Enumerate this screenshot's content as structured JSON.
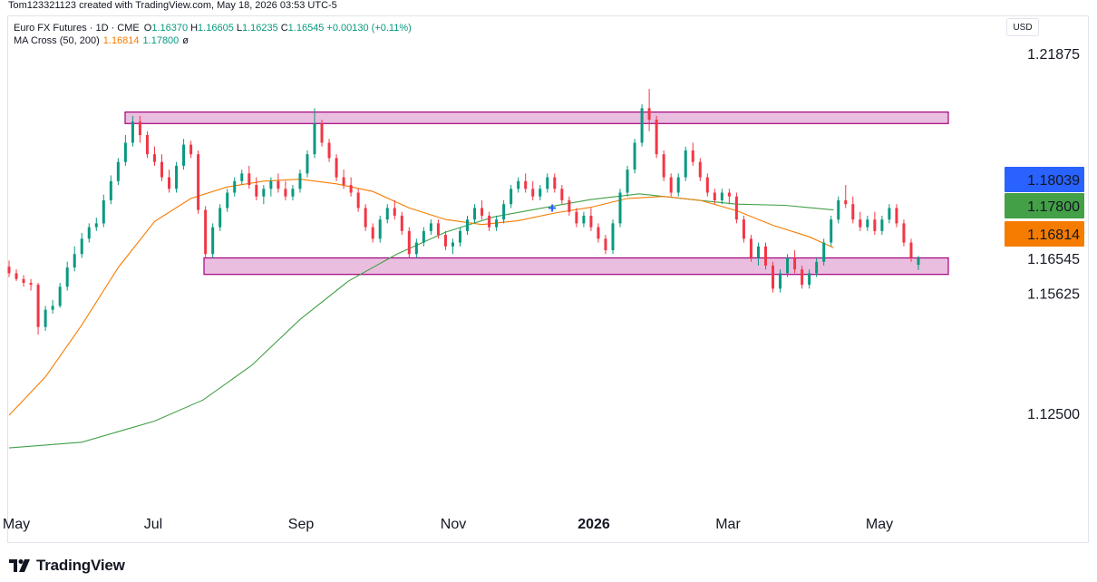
{
  "credit": "Tom123321123 created with TradingView.com, May 18, 2026 03:53 UTC-5",
  "legend": {
    "symbol": "Euro FX Futures · 1D · CME",
    "open_label": "O",
    "open": "1.16370",
    "high_label": "H",
    "high": "1.16605",
    "low_label": "L",
    "low": "1.16235",
    "close_label": "C",
    "close": "1.16545",
    "change": "+0.00130 (+0.11%)",
    "ma_title": "MA Cross (50, 200)",
    "ma50": "1.16814",
    "ma200": "1.17800",
    "ma_symbol": "ø"
  },
  "currency": "USD",
  "brand": "TradingView",
  "colors": {
    "up": "#089981",
    "down": "#f23645",
    "ma50": "#f57c00",
    "ma200": "#43a047",
    "zone_fill": "#e6b3d9",
    "zone_stroke": "#a3007d",
    "blue": "#2962ff"
  },
  "chart_data": {
    "type": "candlestick",
    "y_ticks": [
      "1.21875",
      "1.15625",
      "1.12500"
    ],
    "x_ticks": [
      {
        "label": "May"
      },
      {
        "label": "Jul"
      },
      {
        "label": "Sep"
      },
      {
        "label": "Nov"
      },
      {
        "label": "2026"
      },
      {
        "label": "Mar"
      },
      {
        "label": "May"
      }
    ],
    "price_badges": [
      {
        "label": "1.18039",
        "value": 1.18039,
        "color": "#2962ff"
      },
      {
        "label": "1.17800",
        "value": 1.178,
        "color": "#43a047"
      },
      {
        "label": "1.16814",
        "value": 1.16814,
        "color": "#f57c00"
      },
      {
        "label": "1.16545",
        "value": 1.16545,
        "color": ""
      }
    ],
    "zones": [
      {
        "name": "resistance",
        "top": 1.2035,
        "bottom": 1.2005
      },
      {
        "name": "support",
        "top": 1.1655,
        "bottom": 1.1612
      }
    ],
    "ma50": [
      [
        0,
        1.1245
      ],
      [
        15,
        1.1345
      ],
      [
        30,
        1.148
      ],
      [
        45,
        1.163
      ],
      [
        60,
        1.175
      ],
      [
        75,
        1.181
      ],
      [
        90,
        1.184
      ],
      [
        105,
        1.1855
      ],
      [
        120,
        1.186
      ],
      [
        135,
        1.1848
      ],
      [
        150,
        1.1828
      ],
      [
        165,
        1.1785
      ],
      [
        180,
        1.1755
      ],
      [
        195,
        1.1742
      ],
      [
        210,
        1.1752
      ],
      [
        225,
        1.1772
      ],
      [
        240,
        1.1787
      ],
      [
        255,
        1.181
      ],
      [
        270,
        1.1815
      ],
      [
        285,
        1.1805
      ],
      [
        300,
        1.1778
      ],
      [
        315,
        1.174
      ],
      [
        330,
        1.171
      ],
      [
        340,
        1.16814
      ]
    ],
    "ma200": [
      [
        0,
        1.116
      ],
      [
        30,
        1.1175
      ],
      [
        60,
        1.123
      ],
      [
        80,
        1.1285
      ],
      [
        100,
        1.1375
      ],
      [
        120,
        1.1495
      ],
      [
        140,
        1.1595
      ],
      [
        160,
        1.1665
      ],
      [
        180,
        1.1722
      ],
      [
        200,
        1.1762
      ],
      [
        220,
        1.1785
      ],
      [
        240,
        1.1807
      ],
      [
        260,
        1.1822
      ],
      [
        280,
        1.1808
      ],
      [
        300,
        1.1795
      ],
      [
        320,
        1.1792
      ],
      [
        340,
        1.178
      ]
    ],
    "candles": [
      [
        0,
        1.1632,
        1.1648,
        1.1605,
        1.1615
      ],
      [
        3,
        1.1615,
        1.1625,
        1.1595,
        1.16
      ],
      [
        6,
        1.16,
        1.161,
        1.158,
        1.159
      ],
      [
        9,
        1.159,
        1.16,
        1.157,
        1.1585
      ],
      [
        12,
        1.1585,
        1.159,
        1.1455,
        1.1475
      ],
      [
        15,
        1.1475,
        1.153,
        1.1465,
        1.152
      ],
      [
        18,
        1.152,
        1.1545,
        1.151,
        1.153
      ],
      [
        21,
        1.153,
        1.159,
        1.1525,
        1.158
      ],
      [
        24,
        1.158,
        1.1645,
        1.157,
        1.163
      ],
      [
        27,
        1.163,
        1.1685,
        1.162,
        1.1665
      ],
      [
        30,
        1.1665,
        1.172,
        1.1655,
        1.1705
      ],
      [
        33,
        1.1705,
        1.1745,
        1.1695,
        1.1735
      ],
      [
        36,
        1.1735,
        1.176,
        1.1725,
        1.1745
      ],
      [
        39,
        1.1745,
        1.182,
        1.1735,
        1.1805
      ],
      [
        42,
        1.1805,
        1.187,
        1.1795,
        1.1855
      ],
      [
        45,
        1.1855,
        1.1915,
        1.1845,
        1.1905
      ],
      [
        48,
        1.1905,
        1.1975,
        1.1895,
        1.1955
      ],
      [
        51,
        1.1955,
        1.2025,
        1.1945,
        1.201
      ],
      [
        54,
        1.201,
        1.2025,
        1.1955,
        1.1975
      ],
      [
        57,
        1.1975,
        1.1985,
        1.1915,
        1.1925
      ],
      [
        60,
        1.1925,
        1.1945,
        1.1895,
        1.1905
      ],
      [
        63,
        1.1905,
        1.1925,
        1.1855,
        1.1865
      ],
      [
        66,
        1.1865,
        1.1885,
        1.1825,
        1.1835
      ],
      [
        69,
        1.1835,
        1.1905,
        1.1825,
        1.1895
      ],
      [
        72,
        1.1895,
        1.1965,
        1.1885,
        1.195
      ],
      [
        75,
        1.195,
        1.196,
        1.1915,
        1.1925
      ],
      [
        78,
        1.1925,
        1.1935,
        1.177,
        1.178
      ],
      [
        81,
        1.178,
        1.179,
        1.1655,
        1.1665
      ],
      [
        84,
        1.1665,
        1.1745,
        1.1655,
        1.1735
      ],
      [
        87,
        1.1735,
        1.1795,
        1.1725,
        1.1785
      ],
      [
        90,
        1.1785,
        1.1835,
        1.1775,
        1.1825
      ],
      [
        93,
        1.1825,
        1.1865,
        1.1815,
        1.1855
      ],
      [
        96,
        1.1855,
        1.1885,
        1.1845,
        1.1875
      ],
      [
        99,
        1.1875,
        1.1895,
        1.1835,
        1.1845
      ],
      [
        102,
        1.1845,
        1.1865,
        1.1805,
        1.1815
      ],
      [
        105,
        1.1815,
        1.1845,
        1.1795,
        1.1835
      ],
      [
        108,
        1.1835,
        1.1865,
        1.1815,
        1.1855
      ],
      [
        111,
        1.1855,
        1.1875,
        1.1825,
        1.1835
      ],
      [
        114,
        1.1835,
        1.1855,
        1.1805,
        1.1815
      ],
      [
        117,
        1.1815,
        1.1845,
        1.1805,
        1.1835
      ],
      [
        120,
        1.1835,
        1.1885,
        1.1825,
        1.1875
      ],
      [
        123,
        1.1875,
        1.1935,
        1.1865,
        1.1925
      ],
      [
        126,
        1.1925,
        1.2045,
        1.1915,
        1.2005
      ],
      [
        129,
        1.2005,
        1.2015,
        1.1945,
        1.1955
      ],
      [
        132,
        1.1955,
        1.1965,
        1.1905,
        1.1915
      ],
      [
        135,
        1.1915,
        1.1925,
        1.1855,
        1.1865
      ],
      [
        138,
        1.1865,
        1.1885,
        1.1835,
        1.1845
      ],
      [
        141,
        1.1845,
        1.1865,
        1.1815,
        1.1825
      ],
      [
        144,
        1.1825,
        1.1835,
        1.1775,
        1.1785
      ],
      [
        147,
        1.1785,
        1.1795,
        1.1725,
        1.1735
      ],
      [
        150,
        1.1735,
        1.1745,
        1.1695,
        1.1705
      ],
      [
        153,
        1.1705,
        1.1765,
        1.1695,
        1.1755
      ],
      [
        156,
        1.1755,
        1.1795,
        1.1745,
        1.1785
      ],
      [
        159,
        1.1785,
        1.1805,
        1.1755,
        1.1765
      ],
      [
        162,
        1.1765,
        1.1775,
        1.1715,
        1.1725
      ],
      [
        165,
        1.1725,
        1.1735,
        1.1655,
        1.1665
      ],
      [
        168,
        1.1665,
        1.1705,
        1.1655,
        1.1695
      ],
      [
        171,
        1.1695,
        1.1735,
        1.1685,
        1.1725
      ],
      [
        174,
        1.1725,
        1.1755,
        1.1715,
        1.1745
      ],
      [
        177,
        1.1745,
        1.1755,
        1.1705,
        1.1715
      ],
      [
        180,
        1.1715,
        1.1725,
        1.1675,
        1.1685
      ],
      [
        183,
        1.1685,
        1.1705,
        1.1665,
        1.1695
      ],
      [
        186,
        1.1695,
        1.1735,
        1.1685,
        1.1725
      ],
      [
        189,
        1.1725,
        1.1765,
        1.1715,
        1.1755
      ],
      [
        192,
        1.1755,
        1.1795,
        1.1745,
        1.1785
      ],
      [
        195,
        1.1785,
        1.1805,
        1.1755,
        1.1765
      ],
      [
        198,
        1.1765,
        1.1775,
        1.1725,
        1.1735
      ],
      [
        201,
        1.1735,
        1.1765,
        1.1725,
        1.1755
      ],
      [
        204,
        1.1755,
        1.1805,
        1.1745,
        1.1795
      ],
      [
        207,
        1.1795,
        1.1845,
        1.1785,
        1.1835
      ],
      [
        210,
        1.1835,
        1.1865,
        1.1825,
        1.1855
      ],
      [
        213,
        1.1855,
        1.1875,
        1.1825,
        1.1835
      ],
      [
        216,
        1.1835,
        1.1855,
        1.1805,
        1.1815
      ],
      [
        219,
        1.1815,
        1.1845,
        1.1805,
        1.1835
      ],
      [
        222,
        1.1835,
        1.1875,
        1.1825,
        1.1865
      ],
      [
        225,
        1.1865,
        1.1875,
        1.1825,
        1.1835
      ],
      [
        228,
        1.1835,
        1.1845,
        1.1795,
        1.1805
      ],
      [
        231,
        1.1805,
        1.1815,
        1.1765,
        1.1775
      ],
      [
        234,
        1.1775,
        1.1785,
        1.1735,
        1.1745
      ],
      [
        237,
        1.1745,
        1.1775,
        1.1735,
        1.1765
      ],
      [
        240,
        1.1765,
        1.1785,
        1.1725,
        1.1735
      ],
      [
        243,
        1.1735,
        1.1745,
        1.1695,
        1.1705
      ],
      [
        246,
        1.1705,
        1.1715,
        1.1665,
        1.1675
      ],
      [
        249,
        1.1675,
        1.1755,
        1.1665,
        1.1745
      ],
      [
        252,
        1.1745,
        1.1835,
        1.1735,
        1.1825
      ],
      [
        255,
        1.1825,
        1.1895,
        1.1815,
        1.1885
      ],
      [
        258,
        1.1885,
        1.1965,
        1.1875,
        1.1955
      ],
      [
        261,
        1.1955,
        1.2055,
        1.1945,
        1.2045
      ],
      [
        264,
        1.2045,
        1.2095,
        1.1985,
        1.2015
      ],
      [
        267,
        1.2015,
        1.2025,
        1.1915,
        1.1925
      ],
      [
        270,
        1.1925,
        1.1935,
        1.1855,
        1.1865
      ],
      [
        273,
        1.1865,
        1.1875,
        1.1815,
        1.1825
      ],
      [
        276,
        1.1825,
        1.1875,
        1.1815,
        1.1865
      ],
      [
        279,
        1.1865,
        1.1945,
        1.1855,
        1.1935
      ],
      [
        282,
        1.1935,
        1.1955,
        1.1895,
        1.1905
      ],
      [
        285,
        1.1905,
        1.1915,
        1.1855,
        1.1865
      ],
      [
        288,
        1.1865,
        1.1875,
        1.1815,
        1.1825
      ],
      [
        291,
        1.1825,
        1.1835,
        1.1795,
        1.1805
      ],
      [
        294,
        1.1805,
        1.1835,
        1.1795,
        1.1825
      ],
      [
        297,
        1.1825,
        1.1835,
        1.1795,
        1.1815
      ],
      [
        300,
        1.1815,
        1.1825,
        1.1745,
        1.1755
      ],
      [
        303,
        1.1755,
        1.1765,
        1.1695,
        1.1705
      ],
      [
        306,
        1.1705,
        1.1715,
        1.1645,
        1.1655
      ],
      [
        309,
        1.1655,
        1.1695,
        1.1635,
        1.1685
      ],
      [
        312,
        1.1685,
        1.1695,
        1.1625,
        1.1635
      ],
      [
        315,
        1.1635,
        1.1645,
        1.1565,
        1.1575
      ],
      [
        318,
        1.1575,
        1.1625,
        1.1565,
        1.1615
      ],
      [
        321,
        1.1615,
        1.1665,
        1.1605,
        1.1655
      ],
      [
        324,
        1.1655,
        1.1675,
        1.1615,
        1.1625
      ],
      [
        327,
        1.1625,
        1.1635,
        1.1575,
        1.1585
      ],
      [
        330,
        1.1585,
        1.1625,
        1.1575,
        1.1615
      ],
      [
        333,
        1.1615,
        1.1655,
        1.1605,
        1.1645
      ],
      [
        336,
        1.1645,
        1.1705,
        1.1635,
        1.1695
      ],
      [
        339,
        1.1695,
        1.1765,
        1.1685,
        1.1755
      ],
      [
        342,
        1.1755,
        1.1815,
        1.1745,
        1.1805
      ],
      [
        345,
        1.1805,
        1.1845,
        1.1785,
        1.1795
      ],
      [
        348,
        1.1795,
        1.1815,
        1.1745,
        1.1755
      ],
      [
        351,
        1.1755,
        1.1775,
        1.1725,
        1.1735
      ],
      [
        354,
        1.1735,
        1.1765,
        1.1725,
        1.1755
      ],
      [
        357,
        1.1755,
        1.1775,
        1.1715,
        1.1725
      ],
      [
        360,
        1.1725,
        1.1765,
        1.1715,
        1.1755
      ],
      [
        363,
        1.1755,
        1.1795,
        1.1745,
        1.1785
      ],
      [
        366,
        1.1785,
        1.1795,
        1.1735,
        1.1745
      ],
      [
        369,
        1.1745,
        1.1755,
        1.1685,
        1.1695
      ],
      [
        372,
        1.1695,
        1.1705,
        1.1645,
        1.1655
      ],
      [
        375,
        1.1637,
        1.16605,
        1.16235,
        1.16545
      ]
    ]
  }
}
